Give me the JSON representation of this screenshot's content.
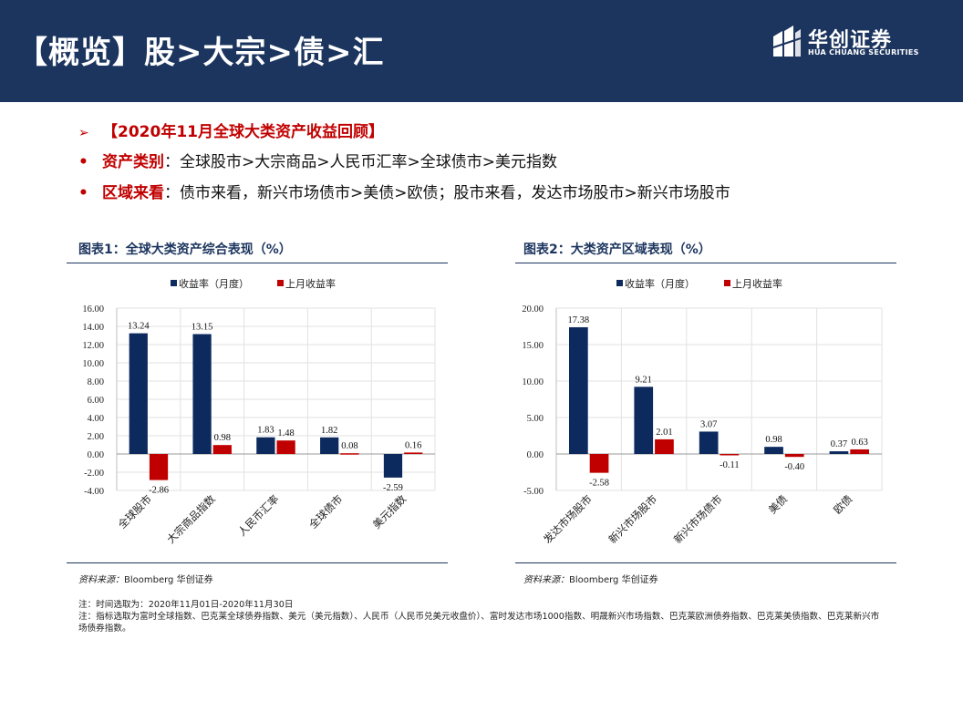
{
  "header": {
    "title": "【概览】股>大宗>债>汇"
  },
  "logo": {
    "name_cn": "华创证券",
    "name_en": "HUA CHUANG SECURITIES"
  },
  "summary": {
    "heading": "【2020年11月全球大类资产收益回顾】",
    "heading_marker": "➢",
    "bullet_marker": "•",
    "items": [
      {
        "label": "资产类别",
        "text": "：全球股市>大宗商品>人民币汇率>全球债市>美元指数"
      },
      {
        "label": "区域来看",
        "text": "：债市来看，新兴市场债市>美债>欧债；股市来看，发达市场股市>新兴市场股市"
      }
    ]
  },
  "figures": [
    {
      "title": "图表1：全球大类资产综合表现（%）",
      "source_label": "资料来源：",
      "source_text": "Bloomberg 华创证券"
    },
    {
      "title": "图表2：大类资产区域表现（%）",
      "source_label": "资料来源：",
      "source_text": "Bloomberg 华创证券"
    }
  ],
  "notes": [
    "注：时间选取为：2020年11月01日-2020年11月30日",
    "注：指标选取为富时全球指数、巴克莱全球债券指数、美元（美元指数）、人民币（人民币兑美元收盘价）、富时发达市场1000指数、明晟新兴市场指数、巴克莱欧洲债券指数、巴克莱美债指数、巴克莱新兴市场债券指数。"
  ],
  "colors": {
    "navy": "#1c355e",
    "series1": "#0d2a5e",
    "series2": "#c00000"
  },
  "chart_data": [
    {
      "type": "bar",
      "title": "全球大类资产综合表现（%）",
      "categories": [
        "全球股市",
        "大宗商品指数",
        "人民币汇率",
        "全球债市",
        "美元指数"
      ],
      "series": [
        {
          "name": "收益率（月度）",
          "values": [
            13.24,
            13.15,
            1.83,
            1.82,
            -2.59
          ]
        },
        {
          "name": "上月收益率",
          "values": [
            -2.86,
            0.98,
            1.48,
            0.08,
            0.16
          ]
        }
      ],
      "ylim": [
        -4,
        16
      ],
      "yticks": [
        "16.00",
        "14.00",
        "12.00",
        "10.00",
        "8.00",
        "6.00",
        "4.00",
        "2.00",
        "0.00",
        "-2.00",
        "-4.00"
      ],
      "legend": "top-center"
    },
    {
      "type": "bar",
      "title": "大类资产区域表现（%）",
      "categories": [
        "发达市场股市",
        "新兴市场股市",
        "新兴市场债市",
        "美债",
        "欧债"
      ],
      "series": [
        {
          "name": "收益率（月度）",
          "values": [
            17.38,
            9.21,
            3.07,
            0.98,
            0.37
          ]
        },
        {
          "name": "上月收益率",
          "values": [
            -2.58,
            2.01,
            -0.11,
            -0.4,
            0.63
          ]
        }
      ],
      "ylim": [
        -5,
        20
      ],
      "yticks": [
        "20.00",
        "15.00",
        "10.00",
        "5.00",
        "0.00",
        "-5.00"
      ],
      "legend": "top-center"
    }
  ]
}
